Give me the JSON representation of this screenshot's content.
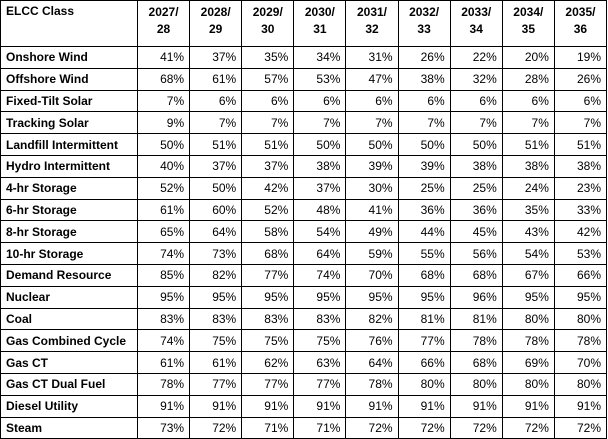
{
  "table": {
    "corner": "ELCC Class",
    "columns": [
      [
        "2027/",
        "28"
      ],
      [
        "2028/",
        "29"
      ],
      [
        "2029/",
        "30"
      ],
      [
        "2030/",
        "31"
      ],
      [
        "2031/",
        "32"
      ],
      [
        "2032/",
        "33"
      ],
      [
        "2033/",
        "34"
      ],
      [
        "2034/",
        "35"
      ],
      [
        "2035/",
        "36"
      ]
    ],
    "rows": [
      {
        "label": "Onshore Wind",
        "cells": [
          "41%",
          "37%",
          "35%",
          "34%",
          "31%",
          "26%",
          "22%",
          "20%",
          "19%"
        ]
      },
      {
        "label": "Offshore Wind",
        "cells": [
          "68%",
          "61%",
          "57%",
          "53%",
          "47%",
          "38%",
          "32%",
          "28%",
          "26%"
        ]
      },
      {
        "label": "Fixed-Tilt Solar",
        "cells": [
          "7%",
          "6%",
          "6%",
          "6%",
          "6%",
          "6%",
          "6%",
          "6%",
          "6%"
        ]
      },
      {
        "label": "Tracking Solar",
        "cells": [
          "9%",
          "7%",
          "7%",
          "7%",
          "7%",
          "7%",
          "7%",
          "7%",
          "7%"
        ]
      },
      {
        "label": "Landfill Intermittent",
        "cells": [
          "50%",
          "51%",
          "51%",
          "50%",
          "50%",
          "50%",
          "50%",
          "51%",
          "51%"
        ]
      },
      {
        "label": "Hydro Intermittent",
        "cells": [
          "40%",
          "37%",
          "37%",
          "38%",
          "39%",
          "39%",
          "38%",
          "38%",
          "38%"
        ]
      },
      {
        "label": "4-hr Storage",
        "cells": [
          "52%",
          "50%",
          "42%",
          "37%",
          "30%",
          "25%",
          "25%",
          "24%",
          "23%"
        ]
      },
      {
        "label": "6-hr Storage",
        "cells": [
          "61%",
          "60%",
          "52%",
          "48%",
          "41%",
          "36%",
          "36%",
          "35%",
          "33%"
        ]
      },
      {
        "label": "8-hr Storage",
        "cells": [
          "65%",
          "64%",
          "58%",
          "54%",
          "49%",
          "44%",
          "45%",
          "43%",
          "42%"
        ]
      },
      {
        "label": "10-hr Storage",
        "cells": [
          "74%",
          "73%",
          "68%",
          "64%",
          "59%",
          "55%",
          "56%",
          "54%",
          "53%"
        ]
      },
      {
        "label": "Demand Resource",
        "cells": [
          "85%",
          "82%",
          "77%",
          "74%",
          "70%",
          "68%",
          "68%",
          "67%",
          "66%"
        ]
      },
      {
        "label": "Nuclear",
        "cells": [
          "95%",
          "95%",
          "95%",
          "95%",
          "95%",
          "95%",
          "96%",
          "95%",
          "95%"
        ]
      },
      {
        "label": "Coal",
        "cells": [
          "83%",
          "83%",
          "83%",
          "83%",
          "82%",
          "81%",
          "81%",
          "80%",
          "80%"
        ]
      },
      {
        "label": "Gas Combined Cycle",
        "cells": [
          "74%",
          "75%",
          "75%",
          "75%",
          "76%",
          "77%",
          "78%",
          "78%",
          "78%"
        ]
      },
      {
        "label": "Gas CT",
        "cells": [
          "61%",
          "61%",
          "62%",
          "63%",
          "64%",
          "66%",
          "68%",
          "69%",
          "70%"
        ]
      },
      {
        "label": "Gas CT Dual Fuel",
        "cells": [
          "78%",
          "77%",
          "77%",
          "77%",
          "78%",
          "80%",
          "80%",
          "80%",
          "80%"
        ]
      },
      {
        "label": "Diesel Utility",
        "cells": [
          "91%",
          "91%",
          "91%",
          "91%",
          "91%",
          "91%",
          "91%",
          "91%",
          "91%"
        ]
      },
      {
        "label": "Steam",
        "cells": [
          "73%",
          "72%",
          "71%",
          "71%",
          "72%",
          "72%",
          "72%",
          "72%",
          "72%"
        ]
      }
    ]
  }
}
